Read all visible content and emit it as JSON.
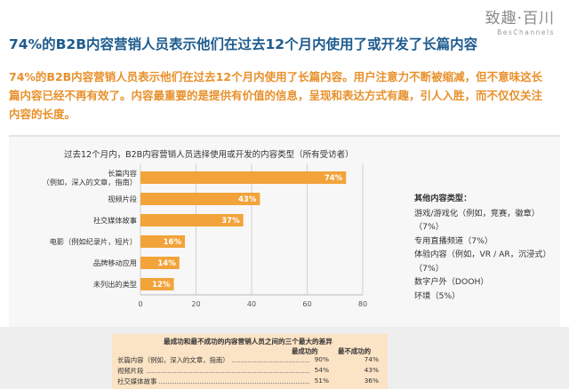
{
  "logo": {
    "cn": "致趣·百川",
    "en": "BesChannels"
  },
  "headline": "74%的B2B内容营销人员表示他们在过去12个月内使用了或开发了长篇内容",
  "intro": "74%的B2B内容营销人员表示他们在过去12个月内使用了长篇内容。用户注意力不断被缩减，但不意味这长篇内容已经不再有效了。内容最重要的是提供有价值的信息，呈现和表达方式有趣，引人入胜，而不仅仅关注内容的长度。",
  "chart_data": {
    "type": "bar",
    "orientation": "horizontal",
    "title": "过去12个月内，B2B内容营销人员选择使用或开发的内容类型（所有受访者）",
    "categories": [
      [
        "长篇内容",
        "（例如，深入的文章，指南）"
      ],
      [
        "视频片段"
      ],
      [
        "社交媒体故事"
      ],
      [
        "电影（例如纪录片，短片）"
      ],
      [
        "品牌移动应用"
      ],
      [
        "未列出的类型"
      ]
    ],
    "values": [
      74,
      43,
      37,
      16,
      14,
      12
    ],
    "value_labels": [
      "74%",
      "43%",
      "37%",
      "16%",
      "14%",
      "12%"
    ],
    "xlim": [
      0,
      80
    ],
    "xticks": [
      "0",
      "20",
      "40",
      "60",
      "80"
    ],
    "bar_color": "#f2a33a",
    "grid": true
  },
  "side_note": {
    "heading": "其他内容类型：",
    "items": [
      "游戏/游戏化（例如，竞赛，徽章）（7%）",
      "专用直播频道（7%）",
      "体验内容（例如，VR / AR，沉浸式）（7%）",
      "数字户外（DOOH）",
      "环境（5%）"
    ]
  },
  "bottom_table": {
    "title": "最成功和最不成功的内容营销人员之间的三个最大的差异",
    "col1": "最成功的",
    "col2": "最不成功的",
    "rows": [
      {
        "label": "长篇内容（例如，深入的文章，指南）",
        "v1": "90%",
        "v2": "74%"
      },
      {
        "label": "视频片段",
        "v1": "54%",
        "v2": "43%"
      },
      {
        "label": "社交媒体故事",
        "v1": "51%",
        "v2": "36%"
      }
    ]
  }
}
